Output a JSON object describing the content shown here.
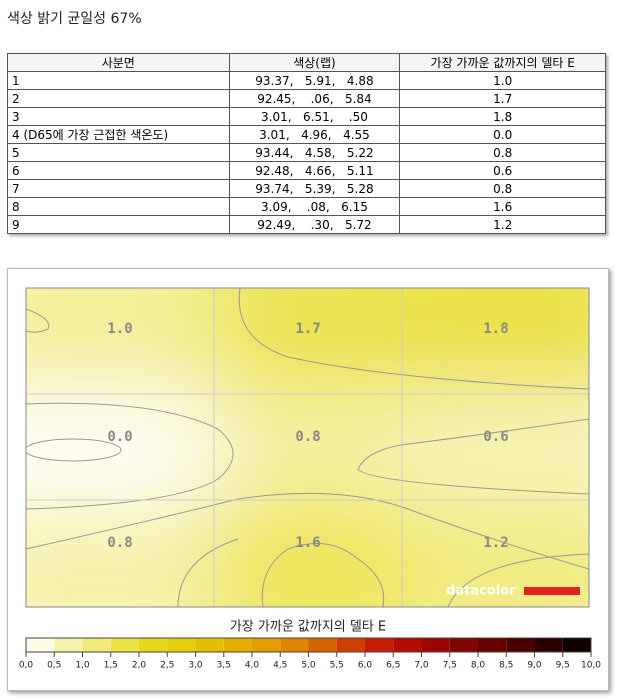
{
  "header": {
    "title": "색상 밝기 균일성 67%"
  },
  "table": {
    "columns": [
      "사분면",
      "색상(랩)",
      "가장 가까운 값까지의 델타 E"
    ],
    "rows": [
      [
        "1",
        "93.37,   5.91,   4.88",
        "1.0"
      ],
      [
        "2",
        "92.45,    .06,   5.84",
        "1.7"
      ],
      [
        "3",
        "3.01,   6.51,    .50",
        "1.8"
      ],
      [
        "4 (D65에 가장 근접한 색온도)",
        "3.01,   4.96,   4.55",
        "0.0"
      ],
      [
        "5",
        "93.44,   4.58,   5.22",
        "0.8"
      ],
      [
        "6",
        "92.48,   4.66,   5.11",
        "0.6"
      ],
      [
        "7",
        "93.74,   5.39,   5.28",
        "0.8"
      ],
      [
        "8",
        "3.09,    .08,   6.15",
        "1.6"
      ],
      [
        "9",
        "92.49,    .30,   5.72",
        "1.2"
      ]
    ]
  },
  "heatmap": {
    "logo": "datacolor"
  },
  "legend": {
    "title": "가장 가까운 값까지의 델타 E",
    "ticks": [
      "0,0",
      "0,5",
      "1,0",
      "1,5",
      "2,0",
      "2,5",
      "3,0",
      "3,5",
      "4,0",
      "4,5",
      "5,0",
      "5,5",
      "6,0",
      "6,5",
      "7,0",
      "7,5",
      "8,0",
      "8,5",
      "9,0",
      "9,5",
      "10,0"
    ]
  }
}
